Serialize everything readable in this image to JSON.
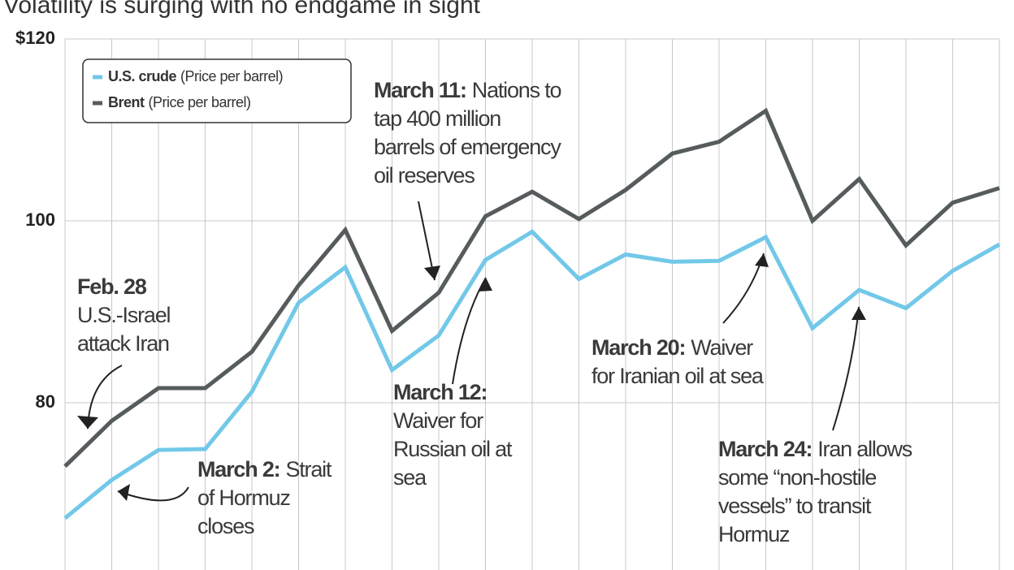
{
  "chart_data": {
    "type": "line",
    "title": "Volatility is surging with no endgame in sight",
    "categories": [
      null,
      null,
      null,
      null,
      null,
      null,
      null,
      null,
      null,
      null,
      null,
      null,
      null,
      null,
      null,
      null,
      null,
      null,
      null,
      null,
      null
    ],
    "series": [
      {
        "name": "U.S. crude",
        "color": "#72c8e8",
        "values": [
          67.3,
          71.5,
          74.8,
          74.9,
          81.2,
          91.0,
          94.9,
          83.6,
          87.4,
          95.7,
          98.8,
          93.6,
          96.3,
          95.5,
          95.6,
          98.2,
          88.2,
          92.4,
          90.4,
          94.5,
          97.4
        ]
      },
      {
        "name": "Brent",
        "color": "#565b5e",
        "values": [
          73.0,
          78.0,
          81.6,
          81.6,
          85.6,
          92.9,
          99.0,
          87.9,
          92.1,
          100.5,
          103.2,
          100.2,
          103.4,
          107.4,
          108.7,
          112.1,
          100.0,
          104.6,
          97.3,
          102.0,
          103.6
        ]
      }
    ],
    "legend_note": "(Price per barrel)",
    "ylim": [
      61.6,
      120
    ],
    "yticks": [
      {
        "value": 120,
        "label": "$120"
      },
      100,
      80
    ],
    "grid": true,
    "legend": "top-left",
    "annotations": [
      {
        "head": "Feb. 28",
        "lines": [
          "U.S.-Israel",
          "attack Iran"
        ]
      },
      {
        "head": "March 2:",
        "lines": [
          "Strait",
          "of Hormuz",
          "closes"
        ]
      },
      {
        "head": "March 11:",
        "lines": [
          "Nations to",
          "tap 400 million",
          "barrels of emergency",
          "oil reserves"
        ]
      },
      {
        "head": "March 12:",
        "lines": [
          "Waiver for",
          "Russian oil at",
          "sea"
        ]
      },
      {
        "head": "March 20:",
        "lines": [
          "Waiver",
          "for Iranian oil at sea"
        ]
      },
      {
        "head": "March 24:",
        "lines": [
          "Iran allows",
          "some “non-hostile",
          "vessels” to transit",
          "Hormuz"
        ]
      }
    ]
  }
}
